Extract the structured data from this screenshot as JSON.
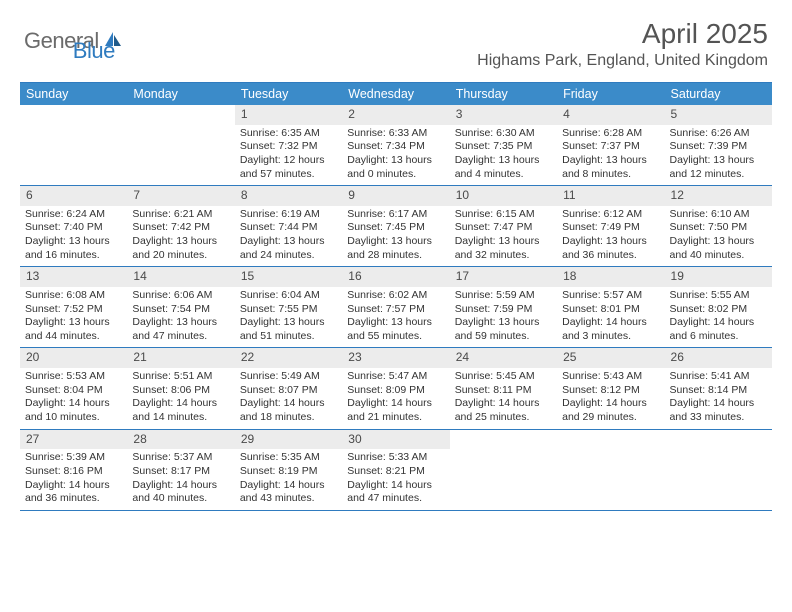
{
  "logo": {
    "general": "General",
    "blue": "Blue"
  },
  "title": "April 2025",
  "location": "Highams Park, England, United Kingdom",
  "weekdays": [
    "Sunday",
    "Monday",
    "Tuesday",
    "Wednesday",
    "Thursday",
    "Friday",
    "Saturday"
  ],
  "colors": {
    "header_bar": "#3b8bc9",
    "border": "#2f7bbf",
    "daynum_bg": "#ececec",
    "text": "#333333",
    "title_text": "#545454"
  },
  "weeks": [
    [
      {
        "day": "",
        "sunrise": "",
        "sunset": "",
        "daylight1": "",
        "daylight2": ""
      },
      {
        "day": "",
        "sunrise": "",
        "sunset": "",
        "daylight1": "",
        "daylight2": ""
      },
      {
        "day": "1",
        "sunrise": "Sunrise: 6:35 AM",
        "sunset": "Sunset: 7:32 PM",
        "daylight1": "Daylight: 12 hours",
        "daylight2": "and 57 minutes."
      },
      {
        "day": "2",
        "sunrise": "Sunrise: 6:33 AM",
        "sunset": "Sunset: 7:34 PM",
        "daylight1": "Daylight: 13 hours",
        "daylight2": "and 0 minutes."
      },
      {
        "day": "3",
        "sunrise": "Sunrise: 6:30 AM",
        "sunset": "Sunset: 7:35 PM",
        "daylight1": "Daylight: 13 hours",
        "daylight2": "and 4 minutes."
      },
      {
        "day": "4",
        "sunrise": "Sunrise: 6:28 AM",
        "sunset": "Sunset: 7:37 PM",
        "daylight1": "Daylight: 13 hours",
        "daylight2": "and 8 minutes."
      },
      {
        "day": "5",
        "sunrise": "Sunrise: 6:26 AM",
        "sunset": "Sunset: 7:39 PM",
        "daylight1": "Daylight: 13 hours",
        "daylight2": "and 12 minutes."
      }
    ],
    [
      {
        "day": "6",
        "sunrise": "Sunrise: 6:24 AM",
        "sunset": "Sunset: 7:40 PM",
        "daylight1": "Daylight: 13 hours",
        "daylight2": "and 16 minutes."
      },
      {
        "day": "7",
        "sunrise": "Sunrise: 6:21 AM",
        "sunset": "Sunset: 7:42 PM",
        "daylight1": "Daylight: 13 hours",
        "daylight2": "and 20 minutes."
      },
      {
        "day": "8",
        "sunrise": "Sunrise: 6:19 AM",
        "sunset": "Sunset: 7:44 PM",
        "daylight1": "Daylight: 13 hours",
        "daylight2": "and 24 minutes."
      },
      {
        "day": "9",
        "sunrise": "Sunrise: 6:17 AM",
        "sunset": "Sunset: 7:45 PM",
        "daylight1": "Daylight: 13 hours",
        "daylight2": "and 28 minutes."
      },
      {
        "day": "10",
        "sunrise": "Sunrise: 6:15 AM",
        "sunset": "Sunset: 7:47 PM",
        "daylight1": "Daylight: 13 hours",
        "daylight2": "and 32 minutes."
      },
      {
        "day": "11",
        "sunrise": "Sunrise: 6:12 AM",
        "sunset": "Sunset: 7:49 PM",
        "daylight1": "Daylight: 13 hours",
        "daylight2": "and 36 minutes."
      },
      {
        "day": "12",
        "sunrise": "Sunrise: 6:10 AM",
        "sunset": "Sunset: 7:50 PM",
        "daylight1": "Daylight: 13 hours",
        "daylight2": "and 40 minutes."
      }
    ],
    [
      {
        "day": "13",
        "sunrise": "Sunrise: 6:08 AM",
        "sunset": "Sunset: 7:52 PM",
        "daylight1": "Daylight: 13 hours",
        "daylight2": "and 44 minutes."
      },
      {
        "day": "14",
        "sunrise": "Sunrise: 6:06 AM",
        "sunset": "Sunset: 7:54 PM",
        "daylight1": "Daylight: 13 hours",
        "daylight2": "and 47 minutes."
      },
      {
        "day": "15",
        "sunrise": "Sunrise: 6:04 AM",
        "sunset": "Sunset: 7:55 PM",
        "daylight1": "Daylight: 13 hours",
        "daylight2": "and 51 minutes."
      },
      {
        "day": "16",
        "sunrise": "Sunrise: 6:02 AM",
        "sunset": "Sunset: 7:57 PM",
        "daylight1": "Daylight: 13 hours",
        "daylight2": "and 55 minutes."
      },
      {
        "day": "17",
        "sunrise": "Sunrise: 5:59 AM",
        "sunset": "Sunset: 7:59 PM",
        "daylight1": "Daylight: 13 hours",
        "daylight2": "and 59 minutes."
      },
      {
        "day": "18",
        "sunrise": "Sunrise: 5:57 AM",
        "sunset": "Sunset: 8:01 PM",
        "daylight1": "Daylight: 14 hours",
        "daylight2": "and 3 minutes."
      },
      {
        "day": "19",
        "sunrise": "Sunrise: 5:55 AM",
        "sunset": "Sunset: 8:02 PM",
        "daylight1": "Daylight: 14 hours",
        "daylight2": "and 6 minutes."
      }
    ],
    [
      {
        "day": "20",
        "sunrise": "Sunrise: 5:53 AM",
        "sunset": "Sunset: 8:04 PM",
        "daylight1": "Daylight: 14 hours",
        "daylight2": "and 10 minutes."
      },
      {
        "day": "21",
        "sunrise": "Sunrise: 5:51 AM",
        "sunset": "Sunset: 8:06 PM",
        "daylight1": "Daylight: 14 hours",
        "daylight2": "and 14 minutes."
      },
      {
        "day": "22",
        "sunrise": "Sunrise: 5:49 AM",
        "sunset": "Sunset: 8:07 PM",
        "daylight1": "Daylight: 14 hours",
        "daylight2": "and 18 minutes."
      },
      {
        "day": "23",
        "sunrise": "Sunrise: 5:47 AM",
        "sunset": "Sunset: 8:09 PM",
        "daylight1": "Daylight: 14 hours",
        "daylight2": "and 21 minutes."
      },
      {
        "day": "24",
        "sunrise": "Sunrise: 5:45 AM",
        "sunset": "Sunset: 8:11 PM",
        "daylight1": "Daylight: 14 hours",
        "daylight2": "and 25 minutes."
      },
      {
        "day": "25",
        "sunrise": "Sunrise: 5:43 AM",
        "sunset": "Sunset: 8:12 PM",
        "daylight1": "Daylight: 14 hours",
        "daylight2": "and 29 minutes."
      },
      {
        "day": "26",
        "sunrise": "Sunrise: 5:41 AM",
        "sunset": "Sunset: 8:14 PM",
        "daylight1": "Daylight: 14 hours",
        "daylight2": "and 33 minutes."
      }
    ],
    [
      {
        "day": "27",
        "sunrise": "Sunrise: 5:39 AM",
        "sunset": "Sunset: 8:16 PM",
        "daylight1": "Daylight: 14 hours",
        "daylight2": "and 36 minutes."
      },
      {
        "day": "28",
        "sunrise": "Sunrise: 5:37 AM",
        "sunset": "Sunset: 8:17 PM",
        "daylight1": "Daylight: 14 hours",
        "daylight2": "and 40 minutes."
      },
      {
        "day": "29",
        "sunrise": "Sunrise: 5:35 AM",
        "sunset": "Sunset: 8:19 PM",
        "daylight1": "Daylight: 14 hours",
        "daylight2": "and 43 minutes."
      },
      {
        "day": "30",
        "sunrise": "Sunrise: 5:33 AM",
        "sunset": "Sunset: 8:21 PM",
        "daylight1": "Daylight: 14 hours",
        "daylight2": "and 47 minutes."
      },
      {
        "day": "",
        "sunrise": "",
        "sunset": "",
        "daylight1": "",
        "daylight2": ""
      },
      {
        "day": "",
        "sunrise": "",
        "sunset": "",
        "daylight1": "",
        "daylight2": ""
      },
      {
        "day": "",
        "sunrise": "",
        "sunset": "",
        "daylight1": "",
        "daylight2": ""
      }
    ]
  ]
}
